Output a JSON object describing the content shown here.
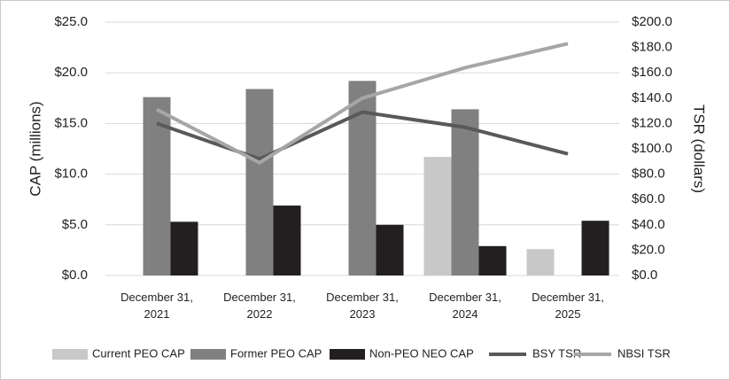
{
  "chart_data": {
    "type": "bar_line",
    "categories": [
      "December 31, 2021",
      "December 31, 2022",
      "December 31, 2023",
      "December 31, 2024",
      "December 31, 2025"
    ],
    "series": [
      {
        "name": "Current PEO CAP",
        "type": "bar",
        "color": "#c8c8c8",
        "values": [
          null,
          null,
          null,
          11.7,
          2.6
        ]
      },
      {
        "name": "Former PEO CAP",
        "type": "bar",
        "color": "#808080",
        "values": [
          17.6,
          18.4,
          19.2,
          16.4,
          null
        ]
      },
      {
        "name": "Non-PEO NEO CAP",
        "type": "bar",
        "color": "#231f20",
        "values": [
          5.3,
          6.9,
          5.0,
          2.9,
          5.4
        ]
      },
      {
        "name": "BSY TSR",
        "type": "line",
        "axis": "y2",
        "color": "#595959",
        "values": [
          120,
          92,
          129,
          117,
          96
        ]
      },
      {
        "name": "NBSI TSR",
        "type": "line",
        "axis": "y2",
        "color": "#a6a6a6",
        "values": [
          131,
          89,
          140,
          164,
          183
        ]
      }
    ],
    "ylabel": "CAP (millions)",
    "y2label": "TSR (dollars)",
    "ylim": [
      0,
      25
    ],
    "yticks": [
      {
        "value": 0,
        "label": "$0.0"
      },
      {
        "value": 5,
        "label": "$5.0"
      },
      {
        "value": 10,
        "label": "$10.0"
      },
      {
        "value": 15,
        "label": "$15.0"
      },
      {
        "value": 20,
        "label": "$20.0"
      },
      {
        "value": 25,
        "label": "$25.0"
      }
    ],
    "y2lim": [
      0,
      200
    ],
    "y2ticks": [
      {
        "value": 0,
        "label": "$0.0"
      },
      {
        "value": 20,
        "label": "$20.0"
      },
      {
        "value": 40,
        "label": "$40.0"
      },
      {
        "value": 60,
        "label": "$60.0"
      },
      {
        "value": 80,
        "label": "$80.0"
      },
      {
        "value": 100,
        "label": "$100.0"
      },
      {
        "value": 120,
        "label": "$120.0"
      },
      {
        "value": 140,
        "label": "$140.0"
      },
      {
        "value": 160,
        "label": "$160.0"
      },
      {
        "value": 180,
        "label": "$180.0"
      },
      {
        "value": 200,
        "label": "$200.0"
      }
    ],
    "grid": true,
    "legend": "bottom"
  }
}
